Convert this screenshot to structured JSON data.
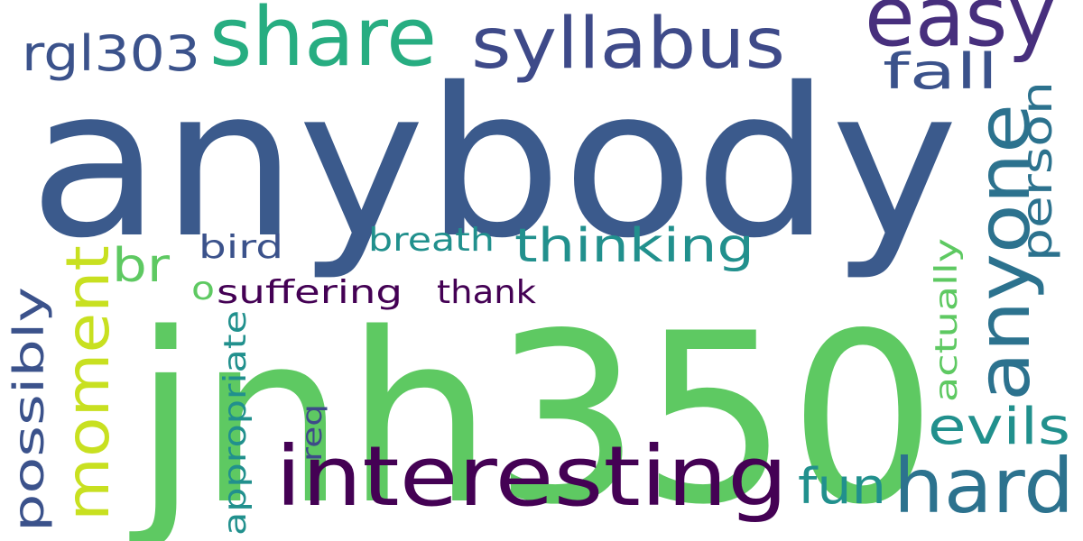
{
  "colors": {
    "background": "#ffffff",
    "dark_purple": "#440154",
    "indigo": "#472f7d",
    "blue": "#3a538b",
    "slate_blue": "#3b528b",
    "teal": "#2c728e",
    "cyan_teal": "#21908d",
    "green_teal": "#27ad81",
    "green": "#5cc863",
    "light_green": "#5ec962",
    "yellow_green": "#c8e020"
  },
  "words": {
    "anybody": "anybody",
    "jnh350": "jnh350",
    "interesting": "interesting",
    "easy": "easy",
    "share": "share",
    "syllabus": "syllabus",
    "anyone": "anyone",
    "hard": "hard",
    "moment": "moment",
    "thinking": "thinking",
    "rgl303": "rgl303",
    "fall": "fall",
    "person": "person",
    "evils": "evils",
    "fun": "fun",
    "possibly": "possibly",
    "br": "br",
    "bird": "bird",
    "breath": "breath",
    "suffering": "suffering",
    "thank": "thank",
    "actually": "actually",
    "appropriate": "appropriate",
    "req": "req",
    "o": "o"
  }
}
